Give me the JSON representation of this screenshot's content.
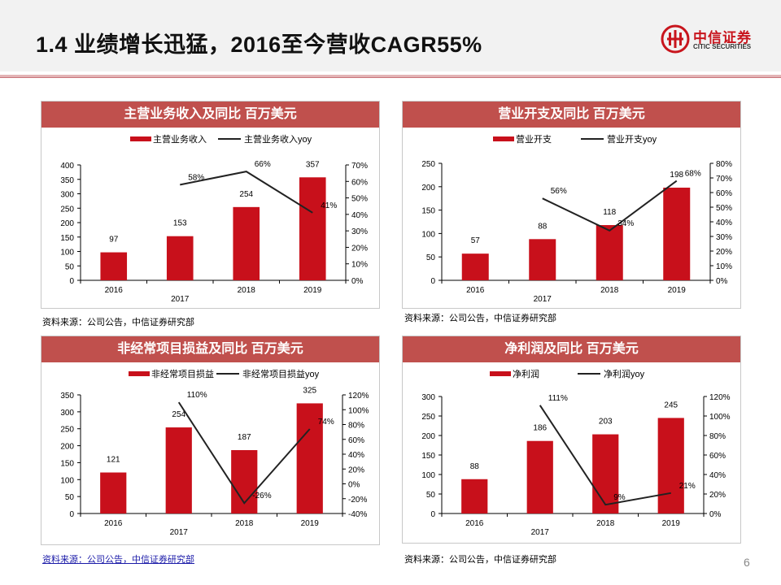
{
  "page": {
    "title": "1.4 业绩增长迅猛，2016至今营收CAGR55%",
    "page_number": "6",
    "logo": {
      "name": "中信证券",
      "en": "CITIC SECURITIES"
    }
  },
  "colors": {
    "bar": "#c8101b",
    "line": "#222222",
    "panel_header": "#c0504d",
    "accent": "#c8151d"
  },
  "panels": [
    {
      "heading": "主营业务收入及同比 百万美元",
      "source": "资料来源：公司公告，中信证券研究部"
    },
    {
      "heading": "营业开支及同比 百万美元",
      "source": "资料来源：公司公告，中信证券研究部"
    },
    {
      "heading": "非经常项目损益及同比 百万美元",
      "source": "资料来源：公司公告，中信证券研究部"
    },
    {
      "heading": "净利润及同比 百万美元",
      "source": "资料来源：公司公告，中信证券研究部"
    }
  ],
  "chart_data": [
    {
      "type": "bar",
      "categories": [
        "2016",
        "2017",
        "2018",
        "2019"
      ],
      "series": [
        {
          "name": "主营业务收入",
          "kind": "bar",
          "axis": "left",
          "values": [
            97,
            153,
            254,
            357
          ],
          "labels": [
            "97",
            "153",
            "254",
            "357"
          ]
        },
        {
          "name": "主营业务收入yoy",
          "kind": "line",
          "axis": "right",
          "values": [
            null,
            58,
            66,
            41
          ],
          "labels": [
            "",
            "58%",
            "66%",
            "41%"
          ]
        }
      ],
      "ylim": [
        0,
        400
      ],
      "yticks": [
        "0",
        "50",
        "100",
        "150",
        "200",
        "250",
        "300",
        "350",
        "400"
      ],
      "y2lim": [
        0,
        70
      ],
      "y2ticks": [
        "0%",
        "10%",
        "20%",
        "30%",
        "40%",
        "50%",
        "60%",
        "70%"
      ],
      "legend": "top"
    },
    {
      "type": "bar",
      "categories": [
        "2016",
        "2017",
        "2018",
        "2019"
      ],
      "series": [
        {
          "name": "营业开支",
          "kind": "bar",
          "axis": "left",
          "values": [
            57,
            88,
            118,
            198
          ],
          "labels": [
            "57",
            "88",
            "118",
            "198"
          ]
        },
        {
          "name": "营业开支yoy",
          "kind": "line",
          "axis": "right",
          "values": [
            null,
            56,
            34,
            68
          ],
          "labels": [
            "",
            "56%",
            "34%",
            "68%"
          ]
        }
      ],
      "ylim": [
        0,
        250
      ],
      "yticks": [
        "0",
        "50",
        "100",
        "150",
        "200",
        "250"
      ],
      "y2lim": [
        0,
        80
      ],
      "y2ticks": [
        "0%",
        "10%",
        "20%",
        "30%",
        "40%",
        "50%",
        "60%",
        "70%",
        "80%"
      ],
      "legend": "top"
    },
    {
      "type": "bar",
      "categories": [
        "2016",
        "2017",
        "2018",
        "2019"
      ],
      "series": [
        {
          "name": "非经常项目损益",
          "kind": "bar",
          "axis": "left",
          "values": [
            121,
            254,
            187,
            325
          ],
          "labels": [
            "121",
            "254",
            "187",
            "325"
          ]
        },
        {
          "name": "非经常项目损益yoy",
          "kind": "line",
          "axis": "right",
          "values": [
            null,
            110,
            -26,
            74
          ],
          "labels": [
            "",
            "110%",
            "-26%",
            "74%"
          ]
        }
      ],
      "ylim": [
        0,
        350
      ],
      "yticks": [
        "0",
        "50",
        "100",
        "150",
        "200",
        "250",
        "300",
        "350"
      ],
      "y2lim": [
        -40,
        120
      ],
      "y2ticks": [
        "-40%",
        "-20%",
        "0%",
        "20%",
        "40%",
        "60%",
        "80%",
        "100%",
        "120%"
      ],
      "legend": "top"
    },
    {
      "type": "bar",
      "categories": [
        "2016",
        "2017",
        "2018",
        "2019"
      ],
      "series": [
        {
          "name": "净利润",
          "kind": "bar",
          "axis": "left",
          "values": [
            88,
            186,
            203,
            245
          ],
          "labels": [
            "88",
            "186",
            "203",
            "245"
          ]
        },
        {
          "name": "净利润yoy",
          "kind": "line",
          "axis": "right",
          "values": [
            null,
            111,
            9,
            21
          ],
          "labels": [
            "",
            "111%",
            "9%",
            "21%"
          ]
        }
      ],
      "ylim": [
        0,
        300
      ],
      "yticks": [
        "0",
        "50",
        "100",
        "150",
        "200",
        "250",
        "300"
      ],
      "y2lim": [
        0,
        120
      ],
      "y2ticks": [
        "0%",
        "20%",
        "40%",
        "60%",
        "80%",
        "100%",
        "120%"
      ],
      "legend": "top"
    }
  ]
}
